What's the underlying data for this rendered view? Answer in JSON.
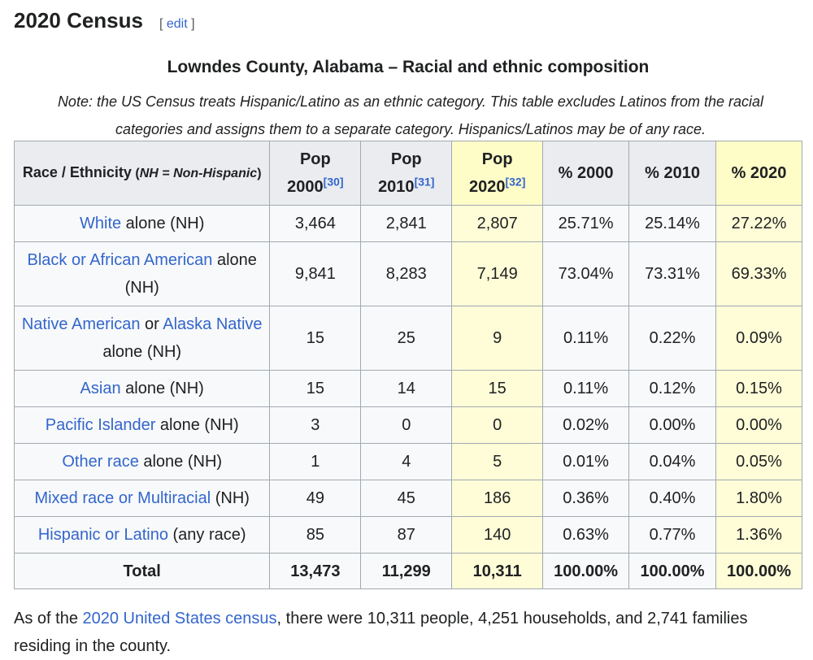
{
  "section": {
    "heading": "2020 Census",
    "edit_open": "[ ",
    "edit_label": "edit",
    "edit_close": " ]"
  },
  "table": {
    "title": "Lowndes County, Alabama – Racial and ethnic composition",
    "note": "Note: the US Census treats Hispanic/Latino as an ethnic category. This table excludes Latinos from the racial categories and assigns them to a separate category. Hispanics/Latinos may be of any race.",
    "headers": {
      "race_main": "Race / Ethnicity",
      "race_nh_open": " (",
      "race_nh_abbr": "NH = Non-Hispanic",
      "race_nh_close": ")",
      "pop2000": "Pop 2000",
      "pop2000_ref": "[30]",
      "pop2010": "Pop 2010",
      "pop2010_ref": "[31]",
      "pop2020": "Pop 2020",
      "pop2020_ref": "[32]",
      "pct2000": "% 2000",
      "pct2010": "% 2010",
      "pct2020": "% 2020"
    },
    "rows": [
      {
        "link": "White",
        "link2": "",
        "mid": "",
        "suffix": " alone (NH)",
        "pop2000": "3,464",
        "pop2010": "2,841",
        "pop2020": "2,807",
        "pct2000": "25.71%",
        "pct2010": "25.14%",
        "pct2020": "27.22%"
      },
      {
        "link": "Black or African American",
        "link2": "",
        "mid": "",
        "suffix": " alone (NH)",
        "pop2000": "9,841",
        "pop2010": "8,283",
        "pop2020": "7,149",
        "pct2000": "73.04%",
        "pct2010": "73.31%",
        "pct2020": "69.33%"
      },
      {
        "link": "Native American",
        "link2": "Alaska Native",
        "mid": " or ",
        "suffix": " alone (NH)",
        "pop2000": "15",
        "pop2010": "25",
        "pop2020": "9",
        "pct2000": "0.11%",
        "pct2010": "0.22%",
        "pct2020": "0.09%"
      },
      {
        "link": "Asian",
        "link2": "",
        "mid": "",
        "suffix": " alone (NH)",
        "pop2000": "15",
        "pop2010": "14",
        "pop2020": "15",
        "pct2000": "0.11%",
        "pct2010": "0.12%",
        "pct2020": "0.15%"
      },
      {
        "link": "Pacific Islander",
        "link2": "",
        "mid": "",
        "suffix": " alone (NH)",
        "pop2000": "3",
        "pop2010": "0",
        "pop2020": "0",
        "pct2000": "0.02%",
        "pct2010": "0.00%",
        "pct2020": "0.00%"
      },
      {
        "link": "Other race",
        "link2": "",
        "mid": "",
        "suffix": " alone (NH)",
        "pop2000": "1",
        "pop2010": "4",
        "pop2020": "5",
        "pct2000": "0.01%",
        "pct2010": "0.04%",
        "pct2020": "0.05%"
      },
      {
        "link": "Mixed race or Multiracial",
        "link2": "",
        "mid": "",
        "suffix": " (NH)",
        "pop2000": "49",
        "pop2010": "45",
        "pop2020": "186",
        "pct2000": "0.36%",
        "pct2010": "0.40%",
        "pct2020": "1.80%"
      },
      {
        "link": "Hispanic or Latino",
        "link2": "",
        "mid": "",
        "suffix": " (any race)",
        "pop2000": "85",
        "pop2010": "87",
        "pop2020": "140",
        "pct2000": "0.63%",
        "pct2010": "0.77%",
        "pct2020": "1.36%"
      }
    ],
    "total": {
      "label": "Total",
      "pop2000": "13,473",
      "pop2010": "11,299",
      "pop2020": "10,311",
      "pct2000": "100.00%",
      "pct2010": "100.00%",
      "pct2020": "100.00%"
    }
  },
  "paragraph": {
    "before": "As of the ",
    "link": "2020 United States census",
    "after": ", there were 10,311 people, 4,251 households, and 2,741 families residing in the county."
  },
  "colors": {
    "link": "#3366cc",
    "highlight_header": "#fefdc8",
    "highlight_cell": "#fefdd8",
    "header_bg": "#eaecf0",
    "border": "#a2a9b1"
  }
}
